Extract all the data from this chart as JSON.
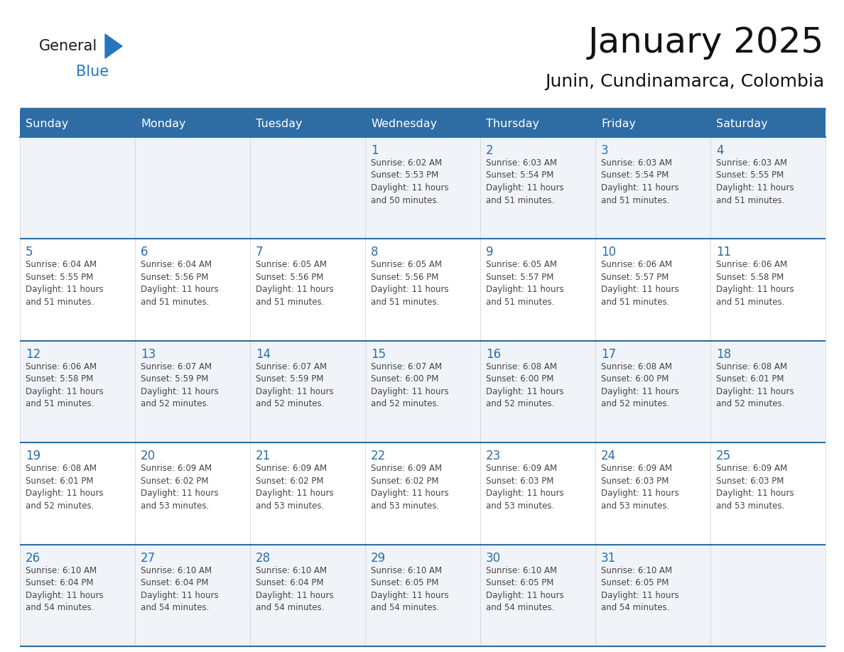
{
  "title": "January 2025",
  "subtitle": "Junin, Cundinamarca, Colombia",
  "header_bg": "#2E6DA4",
  "header_text_color": "#FFFFFF",
  "cell_bg_odd": "#F0F4F8",
  "cell_bg_even": "#FFFFFF",
  "grid_line_color": "#2E6DA4",
  "day_number_color": "#2E6DA4",
  "text_color": "#444444",
  "logo_general_color": "#1a1a1a",
  "logo_blue_color": "#2776BD",
  "weekdays": [
    "Sunday",
    "Monday",
    "Tuesday",
    "Wednesday",
    "Thursday",
    "Friday",
    "Saturday"
  ],
  "weeks": [
    [
      {
        "day": 0,
        "text": ""
      },
      {
        "day": 0,
        "text": ""
      },
      {
        "day": 0,
        "text": ""
      },
      {
        "day": 1,
        "text": "Sunrise: 6:02 AM\nSunset: 5:53 PM\nDaylight: 11 hours\nand 50 minutes."
      },
      {
        "day": 2,
        "text": "Sunrise: 6:03 AM\nSunset: 5:54 PM\nDaylight: 11 hours\nand 51 minutes."
      },
      {
        "day": 3,
        "text": "Sunrise: 6:03 AM\nSunset: 5:54 PM\nDaylight: 11 hours\nand 51 minutes."
      },
      {
        "day": 4,
        "text": "Sunrise: 6:03 AM\nSunset: 5:55 PM\nDaylight: 11 hours\nand 51 minutes."
      }
    ],
    [
      {
        "day": 5,
        "text": "Sunrise: 6:04 AM\nSunset: 5:55 PM\nDaylight: 11 hours\nand 51 minutes."
      },
      {
        "day": 6,
        "text": "Sunrise: 6:04 AM\nSunset: 5:56 PM\nDaylight: 11 hours\nand 51 minutes."
      },
      {
        "day": 7,
        "text": "Sunrise: 6:05 AM\nSunset: 5:56 PM\nDaylight: 11 hours\nand 51 minutes."
      },
      {
        "day": 8,
        "text": "Sunrise: 6:05 AM\nSunset: 5:56 PM\nDaylight: 11 hours\nand 51 minutes."
      },
      {
        "day": 9,
        "text": "Sunrise: 6:05 AM\nSunset: 5:57 PM\nDaylight: 11 hours\nand 51 minutes."
      },
      {
        "day": 10,
        "text": "Sunrise: 6:06 AM\nSunset: 5:57 PM\nDaylight: 11 hours\nand 51 minutes."
      },
      {
        "day": 11,
        "text": "Sunrise: 6:06 AM\nSunset: 5:58 PM\nDaylight: 11 hours\nand 51 minutes."
      }
    ],
    [
      {
        "day": 12,
        "text": "Sunrise: 6:06 AM\nSunset: 5:58 PM\nDaylight: 11 hours\nand 51 minutes."
      },
      {
        "day": 13,
        "text": "Sunrise: 6:07 AM\nSunset: 5:59 PM\nDaylight: 11 hours\nand 52 minutes."
      },
      {
        "day": 14,
        "text": "Sunrise: 6:07 AM\nSunset: 5:59 PM\nDaylight: 11 hours\nand 52 minutes."
      },
      {
        "day": 15,
        "text": "Sunrise: 6:07 AM\nSunset: 6:00 PM\nDaylight: 11 hours\nand 52 minutes."
      },
      {
        "day": 16,
        "text": "Sunrise: 6:08 AM\nSunset: 6:00 PM\nDaylight: 11 hours\nand 52 minutes."
      },
      {
        "day": 17,
        "text": "Sunrise: 6:08 AM\nSunset: 6:00 PM\nDaylight: 11 hours\nand 52 minutes."
      },
      {
        "day": 18,
        "text": "Sunrise: 6:08 AM\nSunset: 6:01 PM\nDaylight: 11 hours\nand 52 minutes."
      }
    ],
    [
      {
        "day": 19,
        "text": "Sunrise: 6:08 AM\nSunset: 6:01 PM\nDaylight: 11 hours\nand 52 minutes."
      },
      {
        "day": 20,
        "text": "Sunrise: 6:09 AM\nSunset: 6:02 PM\nDaylight: 11 hours\nand 53 minutes."
      },
      {
        "day": 21,
        "text": "Sunrise: 6:09 AM\nSunset: 6:02 PM\nDaylight: 11 hours\nand 53 minutes."
      },
      {
        "day": 22,
        "text": "Sunrise: 6:09 AM\nSunset: 6:02 PM\nDaylight: 11 hours\nand 53 minutes."
      },
      {
        "day": 23,
        "text": "Sunrise: 6:09 AM\nSunset: 6:03 PM\nDaylight: 11 hours\nand 53 minutes."
      },
      {
        "day": 24,
        "text": "Sunrise: 6:09 AM\nSunset: 6:03 PM\nDaylight: 11 hours\nand 53 minutes."
      },
      {
        "day": 25,
        "text": "Sunrise: 6:09 AM\nSunset: 6:03 PM\nDaylight: 11 hours\nand 53 minutes."
      }
    ],
    [
      {
        "day": 26,
        "text": "Sunrise: 6:10 AM\nSunset: 6:04 PM\nDaylight: 11 hours\nand 54 minutes."
      },
      {
        "day": 27,
        "text": "Sunrise: 6:10 AM\nSunset: 6:04 PM\nDaylight: 11 hours\nand 54 minutes."
      },
      {
        "day": 28,
        "text": "Sunrise: 6:10 AM\nSunset: 6:04 PM\nDaylight: 11 hours\nand 54 minutes."
      },
      {
        "day": 29,
        "text": "Sunrise: 6:10 AM\nSunset: 6:05 PM\nDaylight: 11 hours\nand 54 minutes."
      },
      {
        "day": 30,
        "text": "Sunrise: 6:10 AM\nSunset: 6:05 PM\nDaylight: 11 hours\nand 54 minutes."
      },
      {
        "day": 31,
        "text": "Sunrise: 6:10 AM\nSunset: 6:05 PM\nDaylight: 11 hours\nand 54 minutes."
      },
      {
        "day": 0,
        "text": ""
      }
    ]
  ]
}
